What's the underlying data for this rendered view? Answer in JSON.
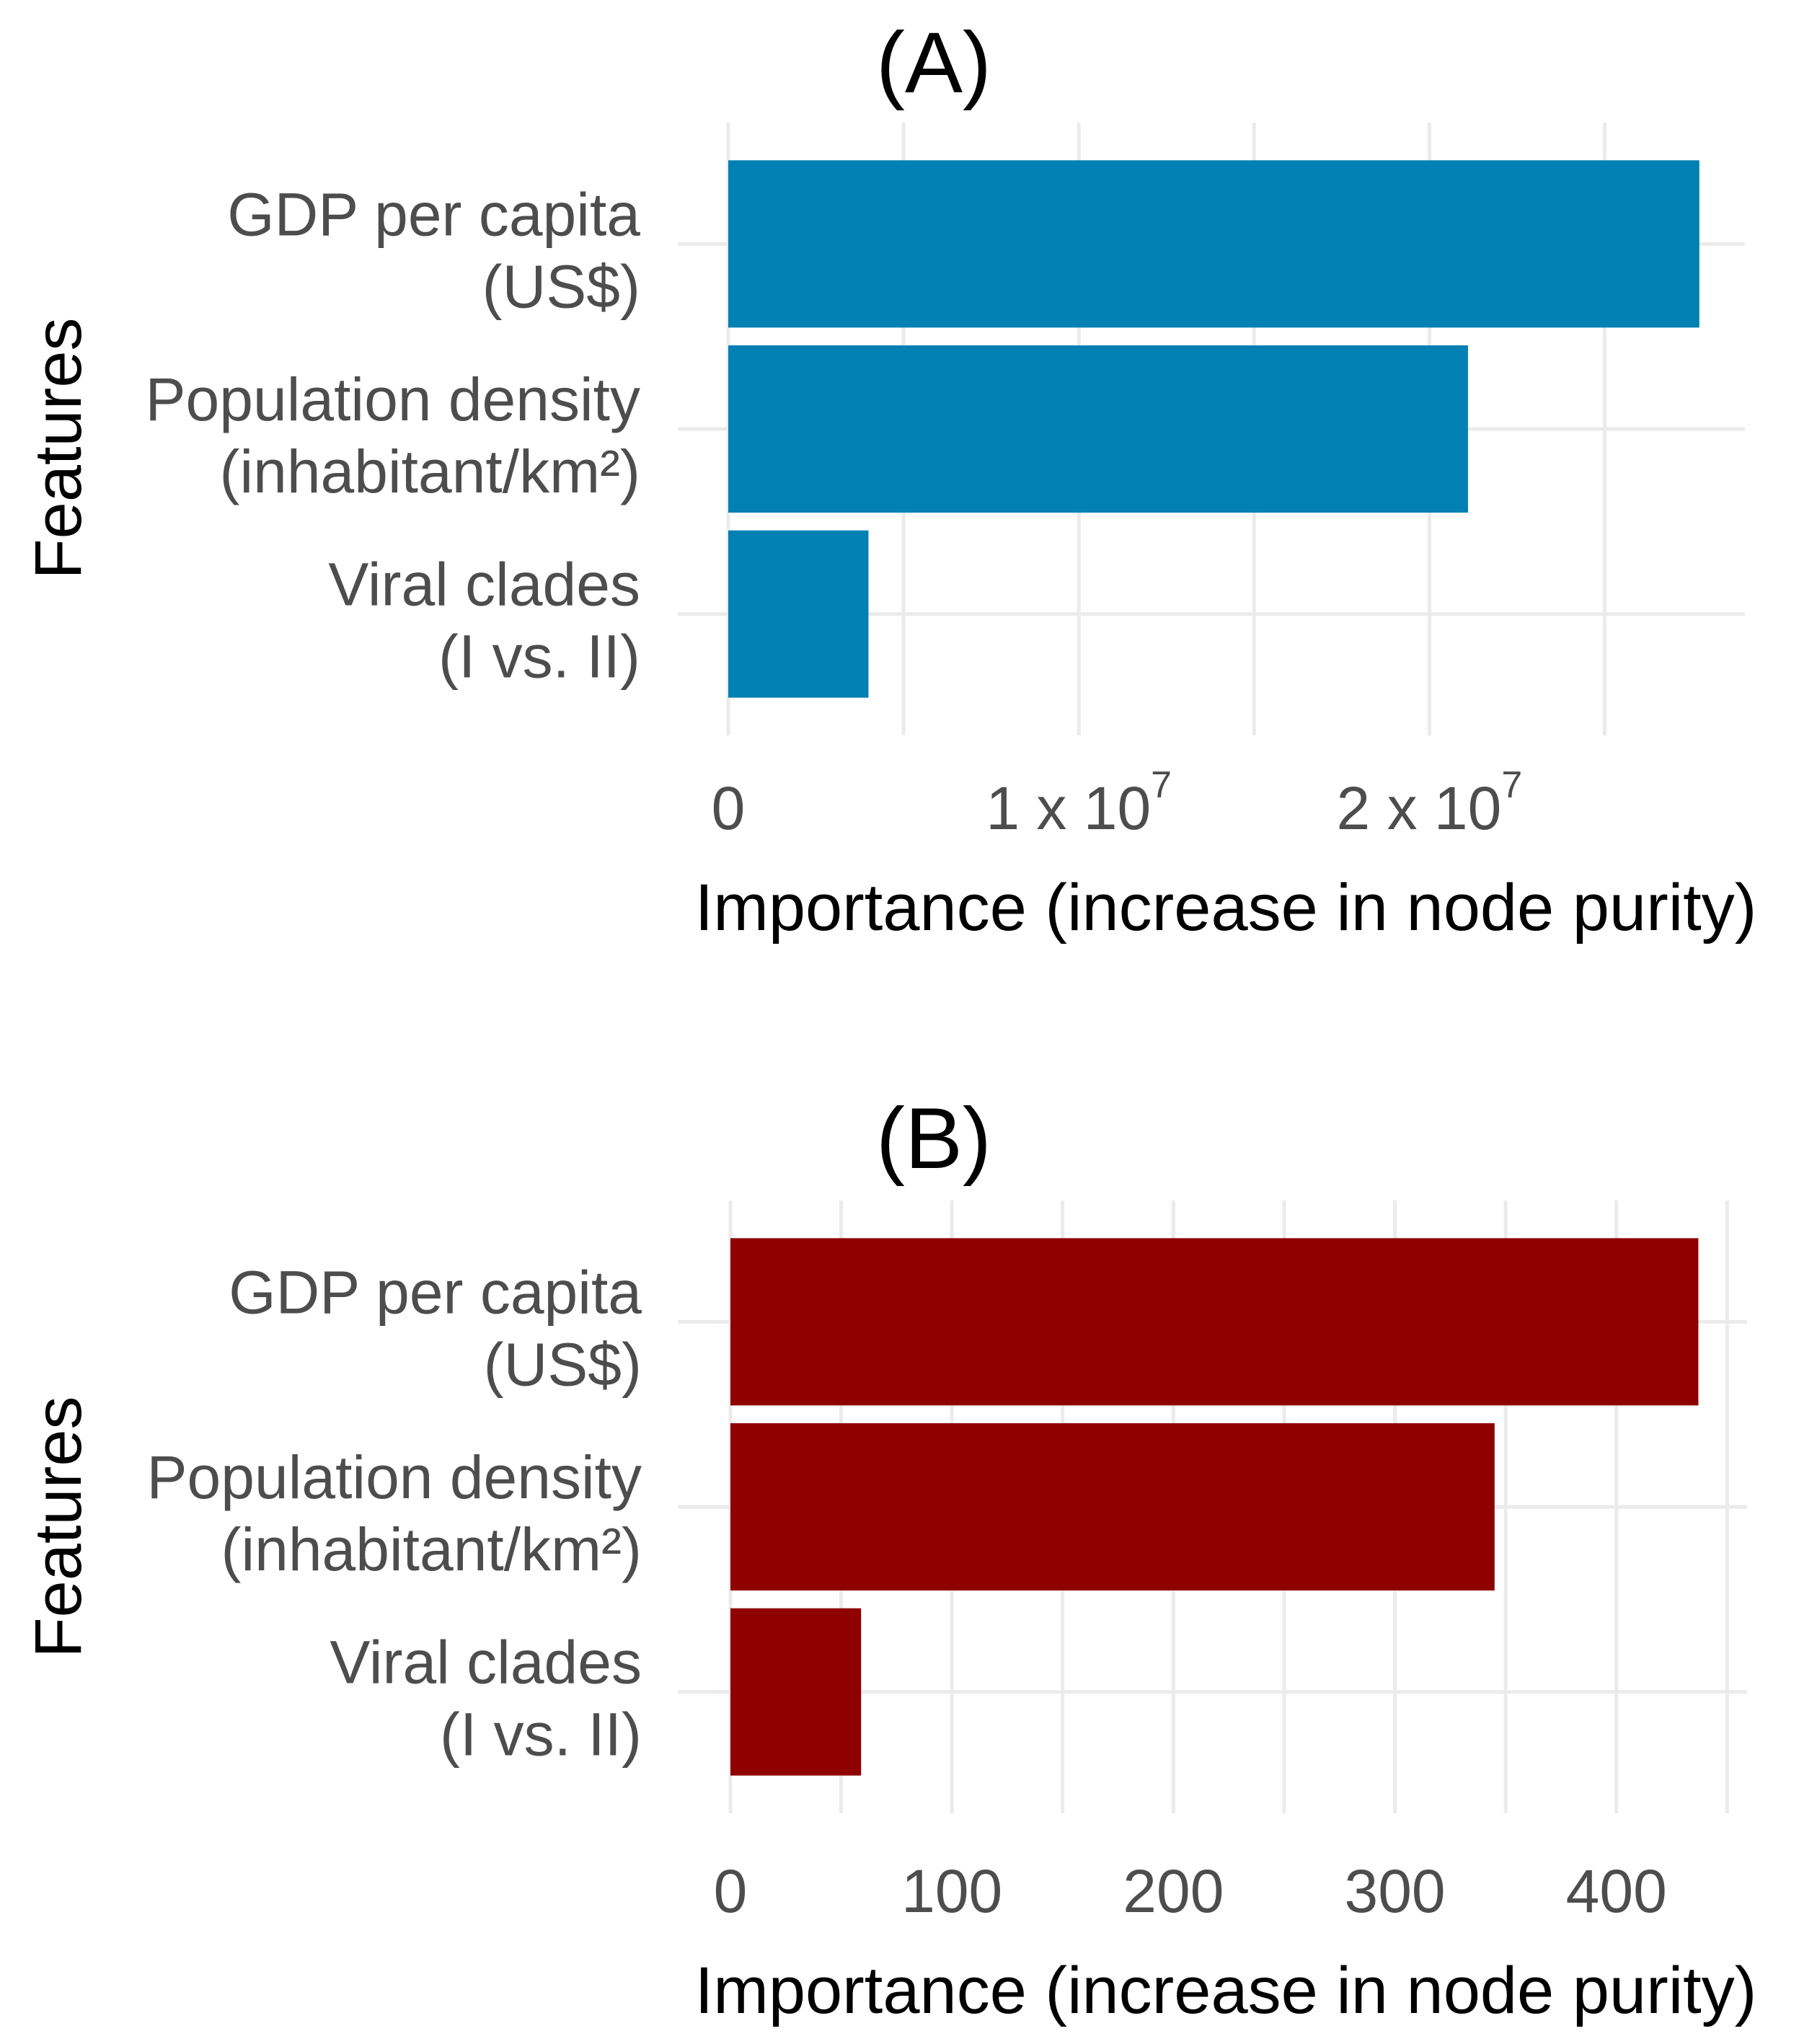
{
  "chart_data": [
    {
      "type": "bar",
      "orientation": "horizontal",
      "title": "(A)",
      "xlabel": "Importance (increase in node purity)",
      "ylabel": "Features",
      "categories": [
        [
          "GDP per capita",
          "(US$)"
        ],
        [
          "Population density",
          "(inhabitant/km²)"
        ],
        [
          "Viral clades",
          "(I vs. II)"
        ]
      ],
      "values": [
        27700000,
        21100000,
        4000000
      ],
      "xlim": [
        0,
        29000000
      ],
      "xticks": [
        {
          "value": 0,
          "mantissa": "0",
          "exponent": ""
        },
        {
          "value": 10000000,
          "mantissa": "1 x 10",
          "exponent": "7"
        },
        {
          "value": 20000000,
          "mantissa": "2 x 10",
          "exponent": "7"
        }
      ],
      "minor_ticks": [
        5000000,
        15000000,
        25000000
      ],
      "color": "#0080b3",
      "grid": true
    },
    {
      "type": "bar",
      "orientation": "horizontal",
      "title": "(B)",
      "xlabel": "Importance (increase in node purity)",
      "ylabel": "Features",
      "categories": [
        [
          "GDP per capita",
          "(US$)"
        ],
        [
          "Population density",
          "(inhabitant/km²)"
        ],
        [
          "Viral clades",
          "(I vs. II)"
        ]
      ],
      "values": [
        437,
        345,
        59
      ],
      "xlim": [
        0,
        459
      ],
      "xticks": [
        {
          "value": 0,
          "mantissa": "0",
          "exponent": ""
        },
        {
          "value": 100,
          "mantissa": "100",
          "exponent": ""
        },
        {
          "value": 200,
          "mantissa": "200",
          "exponent": ""
        },
        {
          "value": 300,
          "mantissa": "300",
          "exponent": ""
        },
        {
          "value": 400,
          "mantissa": "400",
          "exponent": ""
        }
      ],
      "minor_ticks": [
        50,
        150,
        250,
        350,
        450
      ],
      "color": "#8f0000",
      "grid": true
    }
  ]
}
